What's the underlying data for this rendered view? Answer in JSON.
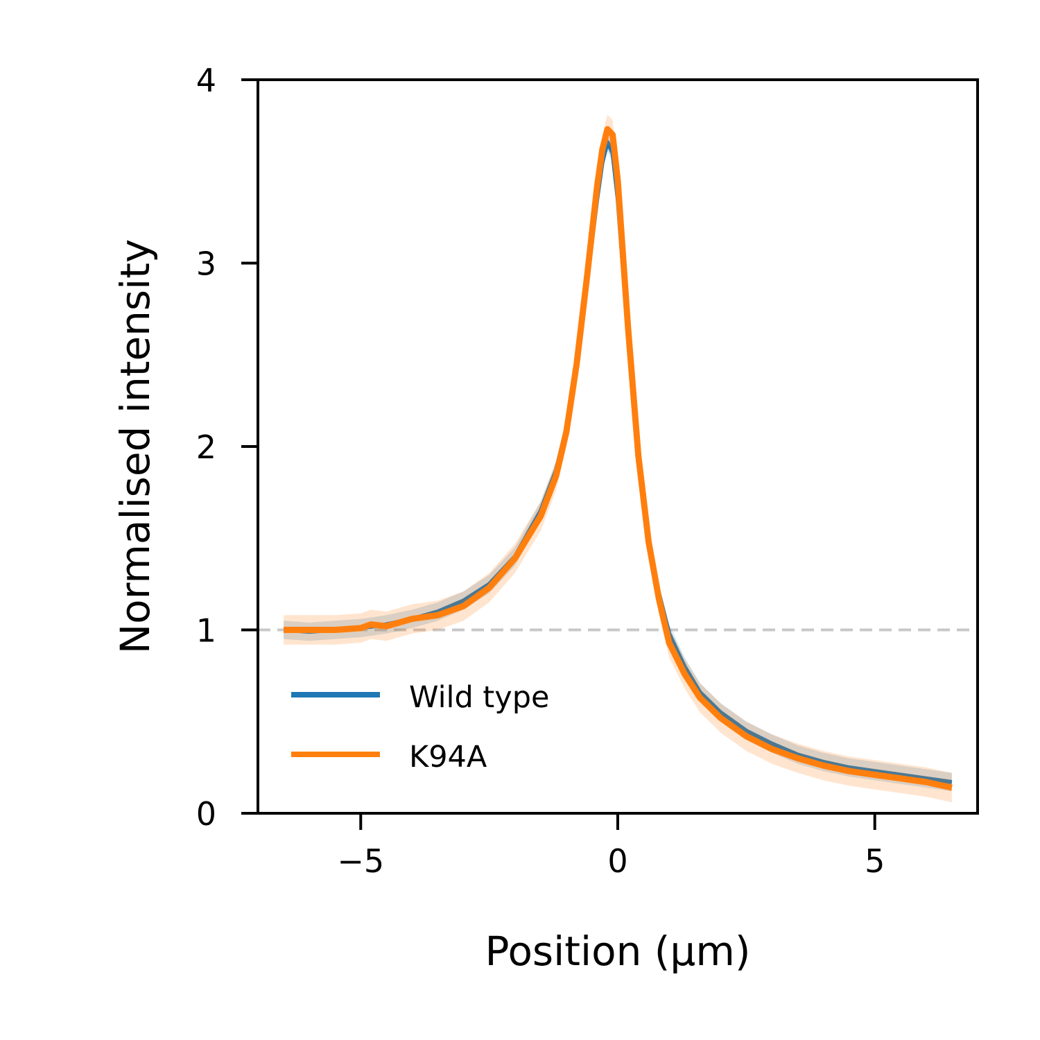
{
  "chart_data": {
    "type": "line",
    "title": "",
    "xlabel": "Position (μm)",
    "ylabel": "Normalised intensity",
    "xlim": [
      -7,
      7
    ],
    "ylim": [
      0,
      4
    ],
    "x_ticks": [
      -5,
      0,
      5
    ],
    "x_tick_labels": [
      "−5",
      "0",
      "5"
    ],
    "y_ticks": [
      0,
      1,
      2,
      3,
      4
    ],
    "y_tick_labels": [
      "0",
      "1",
      "2",
      "3",
      "4"
    ],
    "grid": false,
    "legend_position": "lower-left",
    "reference_line": {
      "y": 1,
      "style": "dashed",
      "color": "#c8c8c8"
    },
    "series": [
      {
        "name": "Wild type",
        "color": "#1f77b4",
        "band": 0.05,
        "x": [
          -6.5,
          -6.0,
          -5.5,
          -5.0,
          -4.5,
          -4.0,
          -3.5,
          -3.0,
          -2.5,
          -2.0,
          -1.5,
          -1.2,
          -1.0,
          -0.8,
          -0.6,
          -0.4,
          -0.3,
          -0.2,
          -0.1,
          0.0,
          0.2,
          0.4,
          0.6,
          0.8,
          1.0,
          1.3,
          1.6,
          2.0,
          2.5,
          3.0,
          3.5,
          4.0,
          4.5,
          5.0,
          5.5,
          6.0,
          6.5
        ],
        "y": [
          1.0,
          0.99,
          1.0,
          1.01,
          1.03,
          1.06,
          1.1,
          1.16,
          1.25,
          1.4,
          1.65,
          1.87,
          2.1,
          2.45,
          2.9,
          3.35,
          3.55,
          3.66,
          3.6,
          3.35,
          2.6,
          1.95,
          1.5,
          1.2,
          0.98,
          0.8,
          0.66,
          0.55,
          0.45,
          0.38,
          0.32,
          0.28,
          0.25,
          0.23,
          0.21,
          0.19,
          0.17
        ]
      },
      {
        "name": "K94A",
        "color": "#ff7f0e",
        "band": 0.08,
        "x": [
          -6.5,
          -6.0,
          -5.5,
          -5.0,
          -4.8,
          -4.5,
          -4.0,
          -3.5,
          -3.0,
          -2.5,
          -2.0,
          -1.5,
          -1.2,
          -1.0,
          -0.8,
          -0.6,
          -0.4,
          -0.3,
          -0.2,
          -0.1,
          0.0,
          0.2,
          0.4,
          0.6,
          0.8,
          1.0,
          1.3,
          1.6,
          2.0,
          2.5,
          3.0,
          3.5,
          4.0,
          4.5,
          5.0,
          5.5,
          6.0,
          6.5
        ],
        "y": [
          1.0,
          1.0,
          1.0,
          1.01,
          1.03,
          1.02,
          1.06,
          1.08,
          1.13,
          1.23,
          1.39,
          1.62,
          1.84,
          2.08,
          2.45,
          2.92,
          3.42,
          3.62,
          3.73,
          3.7,
          3.45,
          2.65,
          1.95,
          1.48,
          1.17,
          0.93,
          0.76,
          0.63,
          0.52,
          0.42,
          0.35,
          0.3,
          0.26,
          0.23,
          0.21,
          0.19,
          0.17,
          0.14
        ]
      }
    ]
  }
}
